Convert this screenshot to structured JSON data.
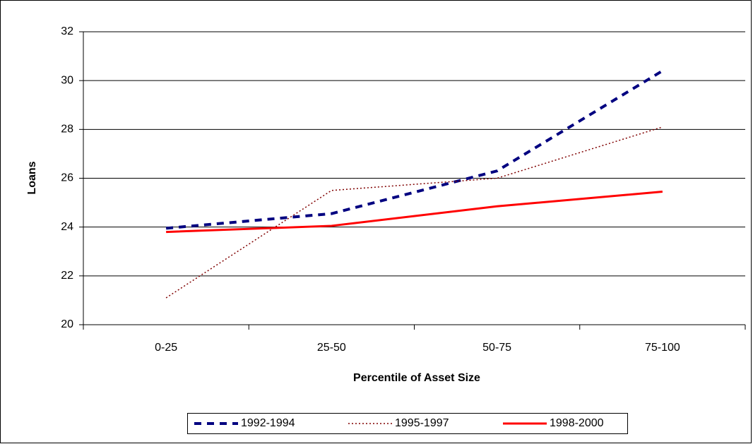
{
  "chart_data": {
    "type": "line",
    "x_label": "Percentile of Asset Size",
    "y_label": "Loans",
    "categories": [
      "0-25",
      "25-50",
      "50-75",
      "75-100"
    ],
    "series": [
      {
        "name": "1992-1994",
        "color": "#000080",
        "dash": "dashed",
        "values": [
          23.95,
          24.55,
          26.3,
          30.4
        ]
      },
      {
        "name": "1995-1997",
        "color": "#800000",
        "dash": "dotted",
        "values": [
          21.1,
          25.5,
          26.0,
          28.1
        ]
      },
      {
        "name": "1998-2000",
        "color": "#ff0000",
        "dash": "solid",
        "values": [
          23.8,
          24.05,
          24.85,
          25.45
        ]
      }
    ],
    "ylim": [
      20,
      32
    ],
    "yticks": [
      20,
      22,
      24,
      26,
      28,
      30,
      32
    ],
    "grid": true,
    "legend": "bottom"
  }
}
